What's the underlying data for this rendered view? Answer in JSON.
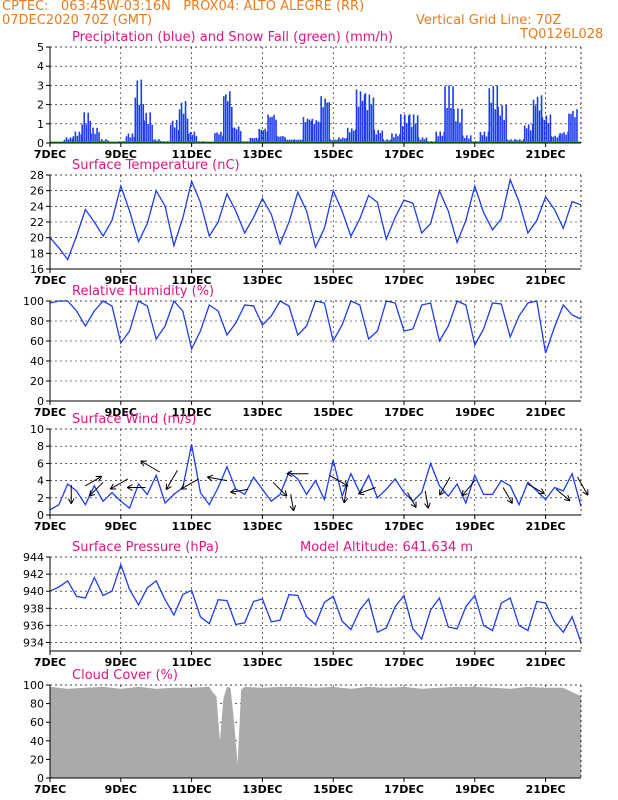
{
  "header": {
    "line1": "CPTEC:   063:45W-03:16N   PROX04: ALTO ALEGRE (RR)",
    "line2": "07DEC2020 70Z (GMT)",
    "vgrid": "Vertical Grid Line: 70Z",
    "code": "TQ0126L028"
  },
  "colors": {
    "header": "#e87b1e",
    "title": "#e0157f",
    "series": "#1e3cf0",
    "snow": "#22aa22",
    "cloud": "#aaaaaa",
    "arrow": "#000000"
  },
  "chart_data": [
    {
      "type": "bar",
      "title": "Precipitation (blue) and Snow Fall (green) (mm/h)",
      "ylim": [
        0,
        5
      ],
      "yticks": [
        0,
        1,
        2,
        3,
        4,
        5
      ],
      "xlabels": [
        "7DEC",
        "9DEC",
        "11DEC",
        "13DEC",
        "15DEC",
        "17DEC",
        "19DEC",
        "21DEC"
      ],
      "xlim": [
        0,
        15
      ],
      "series": [
        {
          "name": "Precipitation",
          "x": [
            0.5,
            0.75,
            1.0,
            1.25,
            1.5,
            1.75,
            2.0,
            2.25,
            2.5,
            2.75,
            3.0,
            3.25,
            3.5,
            3.75,
            4.0,
            4.25,
            4.5,
            4.75,
            5.0,
            5.25,
            5.5,
            5.75,
            6.0,
            6.25,
            6.5,
            6.75,
            7.0,
            7.25,
            7.5,
            7.75,
            8.0,
            8.25,
            8.5,
            8.75,
            9.0,
            9.25,
            9.5,
            9.75,
            10.0,
            10.25,
            10.5,
            10.75,
            11.0,
            11.25,
            11.5,
            11.75,
            12.0,
            12.25,
            12.5,
            12.75,
            13.0,
            13.25,
            13.5,
            13.75,
            14.0,
            14.25,
            14.5,
            14.75
          ],
          "values": [
            0.3,
            0.6,
            1.6,
            0.8,
            0.2,
            0.0,
            0.1,
            0.5,
            3.3,
            1.6,
            0.2,
            0.1,
            1.2,
            2.2,
            0.6,
            0.1,
            0.0,
            0.6,
            2.8,
            0.9,
            0.1,
            0.3,
            0.8,
            1.6,
            0.4,
            0.2,
            0.2,
            1.4,
            1.3,
            2.5,
            0.2,
            0.3,
            0.8,
            2.8,
            2.6,
            0.7,
            0.2,
            0.5,
            1.5,
            1.5,
            0.3,
            0.1,
            0.6,
            3.0,
            1.8,
            0.4,
            0.1,
            0.6,
            3.0,
            2.0,
            0.2,
            0.2,
            1.0,
            2.5,
            1.5,
            0.4,
            0.6,
            1.8
          ]
        },
        {
          "name": "Snow Fall",
          "values": [
            0.0
          ]
        }
      ]
    },
    {
      "type": "line",
      "title": "Surface Temperature (nC)",
      "ylim": [
        16,
        28
      ],
      "yticks": [
        16,
        18,
        20,
        22,
        24,
        26,
        28
      ],
      "xlim": [
        0,
        15
      ],
      "series": [
        {
          "x": [
            0.0,
            0.25,
            0.5,
            0.75,
            1.0,
            1.25,
            1.5,
            1.75,
            2.0,
            2.25,
            2.5,
            2.75,
            3.0,
            3.25,
            3.5,
            3.75,
            4.0,
            4.25,
            4.5,
            4.75,
            5.0,
            5.25,
            5.5,
            5.75,
            6.0,
            6.25,
            6.5,
            6.75,
            7.0,
            7.25,
            7.5,
            7.75,
            8.0,
            8.25,
            8.5,
            8.75,
            9.0,
            9.25,
            9.5,
            9.75,
            10.0,
            10.25,
            10.5,
            10.75,
            11.0,
            11.25,
            11.5,
            11.75,
            12.0,
            12.25,
            12.5,
            12.75,
            13.0,
            13.25,
            13.5,
            13.75,
            14.0,
            14.25,
            14.5,
            14.75,
            15.0
          ],
          "values": [
            20.0,
            18.7,
            17.2,
            20.2,
            23.6,
            22.0,
            20.2,
            22.2,
            26.6,
            23.4,
            19.5,
            21.8,
            26.0,
            24.0,
            19.0,
            22.5,
            27.2,
            24.5,
            20.2,
            22.0,
            25.6,
            23.4,
            20.6,
            22.6,
            25.0,
            23.0,
            19.2,
            22.0,
            25.8,
            23.4,
            18.8,
            21.2,
            26.0,
            23.4,
            20.2,
            22.4,
            25.4,
            24.5,
            19.8,
            22.6,
            24.8,
            24.4,
            20.6,
            21.8,
            26.0,
            23.4,
            19.4,
            22.2,
            26.6,
            23.2,
            21.0,
            22.4,
            27.4,
            24.6,
            20.6,
            22.2,
            25.2,
            23.6,
            21.2,
            24.6,
            24.2
          ]
        }
      ]
    },
    {
      "type": "line",
      "title": "Relative Humidity (%)",
      "ylim": [
        0,
        100
      ],
      "yticks": [
        0,
        20,
        40,
        60,
        80,
        100
      ],
      "xlim": [
        0,
        15
      ],
      "series": [
        {
          "x": [
            0.0,
            0.25,
            0.5,
            0.75,
            1.0,
            1.25,
            1.5,
            1.75,
            2.0,
            2.25,
            2.5,
            2.75,
            3.0,
            3.25,
            3.5,
            3.75,
            4.0,
            4.25,
            4.5,
            4.75,
            5.0,
            5.25,
            5.5,
            5.75,
            6.0,
            6.25,
            6.5,
            6.75,
            7.0,
            7.25,
            7.5,
            7.75,
            8.0,
            8.25,
            8.5,
            8.75,
            9.0,
            9.25,
            9.5,
            9.75,
            10.0,
            10.25,
            10.5,
            10.75,
            11.0,
            11.25,
            11.5,
            11.75,
            12.0,
            12.25,
            12.5,
            12.75,
            13.0,
            13.25,
            13.5,
            13.75,
            14.0,
            14.25,
            14.5,
            14.75,
            15.0
          ],
          "values": [
            98,
            100,
            100,
            90,
            75,
            90,
            100,
            95,
            58,
            70,
            100,
            95,
            62,
            75,
            100,
            90,
            52,
            70,
            96,
            90,
            66,
            78,
            96,
            95,
            76,
            85,
            100,
            95,
            66,
            75,
            100,
            98,
            60,
            76,
            100,
            96,
            62,
            70,
            100,
            98,
            70,
            72,
            96,
            98,
            60,
            75,
            100,
            96,
            56,
            72,
            98,
            97,
            64,
            85,
            98,
            100,
            48,
            74,
            96,
            86,
            82
          ]
        }
      ]
    },
    {
      "type": "line",
      "title": "Surface Wind (m/s)",
      "ylim": [
        0,
        10
      ],
      "yticks": [
        0,
        2,
        4,
        6,
        8,
        10
      ],
      "xlim": [
        0,
        15
      ],
      "series": [
        {
          "x": [
            0.0,
            0.25,
            0.5,
            0.75,
            1.0,
            1.25,
            1.5,
            1.75,
            2.0,
            2.25,
            2.5,
            2.75,
            3.0,
            3.25,
            3.5,
            3.75,
            4.0,
            4.25,
            4.5,
            4.75,
            5.0,
            5.25,
            5.5,
            5.75,
            6.0,
            6.25,
            6.5,
            6.75,
            7.0,
            7.25,
            7.5,
            7.75,
            8.0,
            8.25,
            8.5,
            8.75,
            9.0,
            9.25,
            9.5,
            9.75,
            10.0,
            10.25,
            10.5,
            10.75,
            11.0,
            11.25,
            11.5,
            11.75,
            12.0,
            12.25,
            12.5,
            12.75,
            13.0,
            13.25,
            13.5,
            13.75,
            14.0,
            14.25,
            14.5,
            14.75,
            15.0
          ],
          "values": [
            0.6,
            1.2,
            3.6,
            2.8,
            1.2,
            3.4,
            1.6,
            2.6,
            1.6,
            0.8,
            3.6,
            2.4,
            4.6,
            1.4,
            2.4,
            3.2,
            8.2,
            2.6,
            1.2,
            3.2,
            5.6,
            3.0,
            2.4,
            4.4,
            3.0,
            1.6,
            2.4,
            5.0,
            4.2,
            2.4,
            4.0,
            1.8,
            6.4,
            2.2,
            4.8,
            2.6,
            4.6,
            2.0,
            3.0,
            4.2,
            2.6,
            1.6,
            2.6,
            6.0,
            3.4,
            2.2,
            3.6,
            1.4,
            4.6,
            2.4,
            2.4,
            4.0,
            3.4,
            1.2,
            3.8,
            2.8,
            1.8,
            3.2,
            2.8,
            4.8,
            1.0
          ]
        }
      ],
      "arrows": [
        {
          "x": 0.6,
          "speed": 3.5,
          "dir_deg": 270
        },
        {
          "x": 1.0,
          "speed": 3.4,
          "dir_deg": 30
        },
        {
          "x": 1.5,
          "speed": 3.8,
          "dir_deg": 225
        },
        {
          "x": 2.2,
          "speed": 4.2,
          "dir_deg": 210
        },
        {
          "x": 2.7,
          "speed": 3.2,
          "dir_deg": 180
        },
        {
          "x": 3.1,
          "speed": 5.0,
          "dir_deg": 150
        },
        {
          "x": 3.6,
          "speed": 5.2,
          "dir_deg": 240
        },
        {
          "x": 4.2,
          "speed": 4.2,
          "dir_deg": 210
        },
        {
          "x": 5.0,
          "speed": 4.0,
          "dir_deg": 170
        },
        {
          "x": 5.6,
          "speed": 3.0,
          "dir_deg": 190
        },
        {
          "x": 6.3,
          "speed": 3.8,
          "dir_deg": 315
        },
        {
          "x": 6.8,
          "speed": 2.4,
          "dir_deg": 280
        },
        {
          "x": 7.3,
          "speed": 4.8,
          "dir_deg": 180
        },
        {
          "x": 7.9,
          "speed": 4.6,
          "dir_deg": 330
        },
        {
          "x": 8.4,
          "speed": 3.6,
          "dir_deg": 260
        },
        {
          "x": 9.2,
          "speed": 3.2,
          "dir_deg": 200
        },
        {
          "x": 10.1,
          "speed": 2.6,
          "dir_deg": 300
        },
        {
          "x": 10.6,
          "speed": 2.8,
          "dir_deg": 280
        },
        {
          "x": 11.3,
          "speed": 4.4,
          "dir_deg": 240
        },
        {
          "x": 12.0,
          "speed": 4.0,
          "dir_deg": 230
        },
        {
          "x": 12.8,
          "speed": 3.2,
          "dir_deg": 300
        },
        {
          "x": 13.5,
          "speed": 3.6,
          "dir_deg": 330
        },
        {
          "x": 14.3,
          "speed": 3.0,
          "dir_deg": 320
        },
        {
          "x": 14.9,
          "speed": 4.4,
          "dir_deg": 300
        }
      ]
    },
    {
      "type": "line",
      "title": "Surface Pressure (hPa)",
      "subtitle": "Model Altitude: 641.634 m",
      "ylim": [
        933,
        944
      ],
      "yticks": [
        934,
        936,
        938,
        940,
        942,
        944
      ],
      "xlim": [
        0,
        15
      ],
      "series": [
        {
          "x": [
            0.0,
            0.25,
            0.5,
            0.75,
            1.0,
            1.25,
            1.5,
            1.75,
            2.0,
            2.25,
            2.5,
            2.75,
            3.0,
            3.25,
            3.5,
            3.75,
            4.0,
            4.25,
            4.5,
            4.75,
            5.0,
            5.25,
            5.5,
            5.75,
            6.0,
            6.25,
            6.5,
            6.75,
            7.0,
            7.25,
            7.5,
            7.75,
            8.0,
            8.25,
            8.5,
            8.75,
            9.0,
            9.25,
            9.5,
            9.75,
            10.0,
            10.25,
            10.5,
            10.75,
            11.0,
            11.25,
            11.5,
            11.75,
            12.0,
            12.25,
            12.5,
            12.75,
            13.0,
            13.25,
            13.5,
            13.75,
            14.0,
            14.25,
            14.5,
            14.75,
            15.0
          ],
          "values": [
            940.0,
            940.5,
            941.2,
            939.4,
            939.2,
            941.6,
            939.5,
            940.0,
            943.1,
            940.2,
            938.4,
            940.4,
            941.2,
            939.0,
            937.2,
            939.6,
            940.1,
            937.0,
            936.2,
            939.0,
            938.9,
            936.1,
            936.3,
            938.8,
            939.1,
            936.4,
            936.6,
            939.6,
            939.5,
            937.0,
            936.1,
            938.7,
            939.4,
            936.5,
            935.5,
            937.8,
            939.1,
            935.2,
            935.7,
            938.2,
            939.5,
            935.6,
            934.4,
            937.8,
            939.2,
            935.8,
            935.6,
            938.2,
            939.5,
            936.0,
            935.4,
            938.6,
            939.2,
            936.0,
            935.4,
            938.8,
            938.6,
            936.4,
            935.2,
            937.0,
            934.0
          ]
        }
      ]
    },
    {
      "type": "area",
      "title": "Cloud Cover (%)",
      "ylim": [
        0,
        100
      ],
      "yticks": [
        0,
        20,
        40,
        60,
        80,
        100
      ],
      "xlim": [
        0,
        15
      ],
      "series": [
        {
          "x": [
            0.0,
            0.5,
            1.0,
            1.5,
            2.0,
            2.5,
            3.0,
            3.5,
            4.0,
            4.5,
            4.6,
            4.7,
            4.8,
            4.9,
            5.0,
            5.1,
            5.2,
            5.3,
            5.4,
            5.5,
            6.0,
            6.5,
            7.0,
            7.5,
            8.0,
            8.5,
            9.0,
            9.5,
            10.0,
            10.5,
            11.0,
            11.5,
            12.0,
            12.5,
            13.0,
            13.5,
            14.0,
            14.5,
            15.0
          ],
          "values": [
            98,
            96,
            97,
            98,
            96,
            98,
            96,
            97,
            97,
            98,
            92,
            88,
            40,
            86,
            98,
            97,
            60,
            15,
            95,
            98,
            97,
            98,
            98,
            97,
            98,
            96,
            98,
            97,
            98,
            96,
            97,
            98,
            98,
            97,
            96,
            98,
            97,
            97,
            88
          ]
        }
      ]
    }
  ]
}
